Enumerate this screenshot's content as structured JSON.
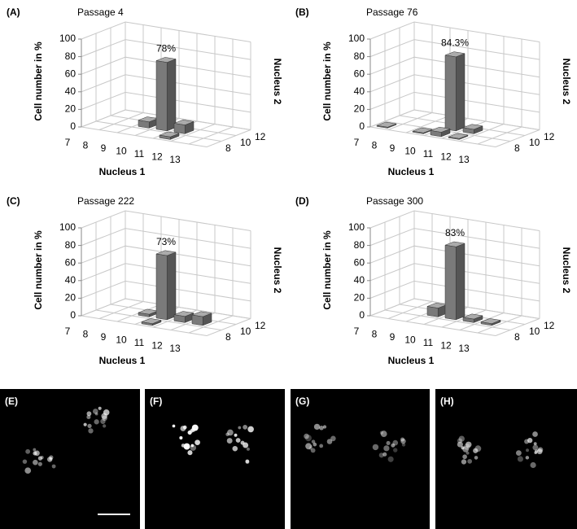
{
  "chart_data": [
    {
      "type": "bar3d",
      "panel": "(A)",
      "title": "Passage 4",
      "y_label": "Cell number in %",
      "x_label": "Nucleus 1",
      "z_label": "Nucleus 2",
      "xticks": [
        7,
        8,
        9,
        10,
        11,
        12,
        13
      ],
      "zticks": [
        8,
        10,
        12
      ],
      "ylim": [
        0,
        100
      ],
      "yticks": [
        0,
        20,
        40,
        60,
        80,
        100
      ],
      "color": "#7a7a7a",
      "bars": {
        "x": [
          9,
          10,
          11,
          11
        ],
        "z": [
          10,
          10,
          10,
          8
        ],
        "values": [
          7,
          78,
          10,
          3
        ],
        "value_labels": [
          null,
          "78%",
          null,
          null
        ]
      }
    },
    {
      "type": "bar3d",
      "panel": "(B)",
      "title": "Passage 76",
      "y_label": "Cell number in %",
      "x_label": "Nucleus 1",
      "z_label": "Nucleus 2",
      "xticks": [
        7,
        8,
        9,
        10,
        11,
        12,
        13
      ],
      "zticks": [
        8,
        10,
        12
      ],
      "ylim": [
        0,
        100
      ],
      "yticks": [
        0,
        20,
        40,
        60,
        80,
        100
      ],
      "color": "#7a7a7a",
      "bars": {
        "x": [
          7,
          9,
          10,
          10,
          11,
          11
        ],
        "z": [
          8,
          8,
          8,
          10,
          10,
          8
        ],
        "values": [
          1,
          1,
          5,
          84.3,
          5,
          1
        ],
        "value_labels": [
          null,
          null,
          null,
          "84.3%",
          null,
          null
        ]
      }
    },
    {
      "type": "bar3d",
      "panel": "(C)",
      "title": "Passage 222",
      "y_label": "Cell number in %",
      "x_label": "Nucleus 1",
      "z_label": "Nucleus 2",
      "xticks": [
        7,
        8,
        9,
        10,
        11,
        12,
        13
      ],
      "zticks": [
        8,
        10,
        12
      ],
      "ylim": [
        0,
        100
      ],
      "yticks": [
        0,
        20,
        40,
        60,
        80,
        100
      ],
      "color": "#7a7a7a",
      "bars": {
        "x": [
          9,
          10,
          10,
          11,
          12
        ],
        "z": [
          10,
          10,
          8,
          10,
          10
        ],
        "values": [
          3,
          73,
          2,
          7,
          10
        ],
        "value_labels": [
          null,
          "73%",
          null,
          null,
          null
        ]
      }
    },
    {
      "type": "bar3d",
      "panel": "(D)",
      "title": "Passage 300",
      "y_label": "Cell number in %",
      "x_label": "Nucleus 1",
      "z_label": "Nucleus 2",
      "xticks": [
        7,
        8,
        9,
        10,
        11,
        12,
        13
      ],
      "zticks": [
        8,
        10,
        12
      ],
      "ylim": [
        0,
        100
      ],
      "yticks": [
        0,
        20,
        40,
        60,
        80,
        100
      ],
      "color": "#7a7a7a",
      "bars": {
        "x": [
          9,
          10,
          11,
          12
        ],
        "z": [
          10,
          10,
          10,
          10
        ],
        "values": [
          10,
          83,
          4,
          2
        ],
        "value_labels": [
          null,
          "83%",
          null,
          null
        ]
      }
    }
  ],
  "image_panels": [
    {
      "label": "(E)"
    },
    {
      "label": "(F)"
    },
    {
      "label": "(G)"
    },
    {
      "label": "(H)"
    }
  ]
}
